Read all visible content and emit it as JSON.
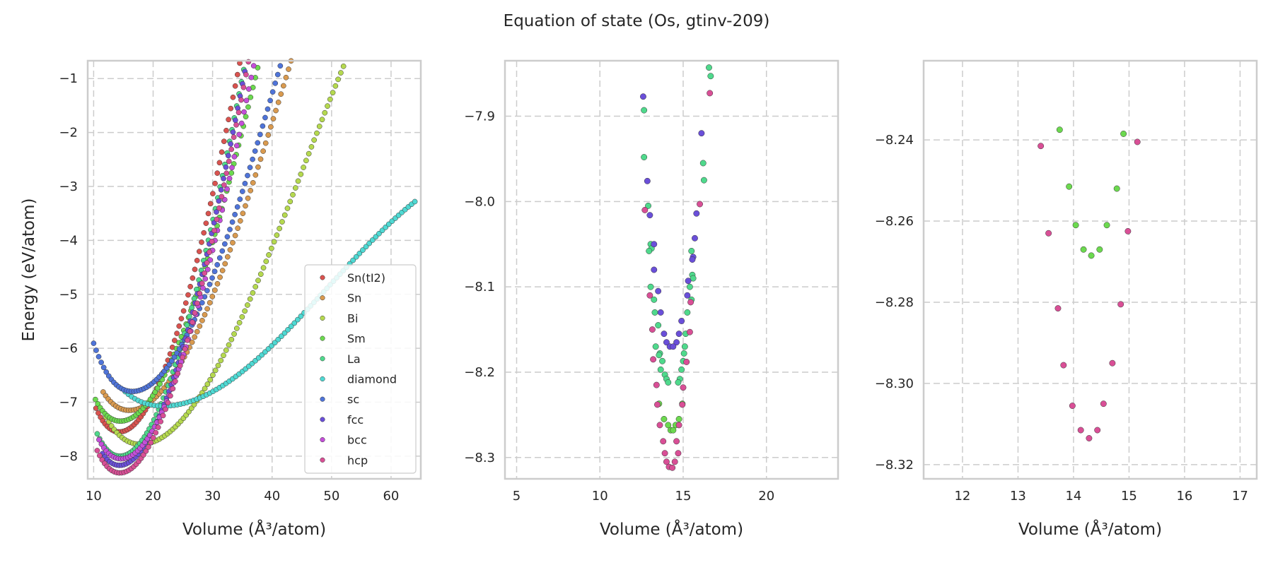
{
  "figure": {
    "title": "Equation of state (Os, gtinv-209)"
  },
  "chart_data": [
    {
      "type": "scatter",
      "xlabel": "Volume (Å³/atom)",
      "ylabel": "Energy (eV/atom)",
      "xlim": [
        9,
        65
      ],
      "ylim": [
        -8.42,
        -0.67
      ],
      "xticks": [
        10,
        20,
        30,
        40,
        50,
        60
      ],
      "yticks": [
        -8,
        -7,
        -6,
        -5,
        -4,
        -3,
        -2,
        -1
      ],
      "ytick_labels": [
        "−8",
        "−7",
        "−6",
        "−5",
        "−4",
        "−3",
        "−2",
        "−1"
      ],
      "grid": true,
      "legend": {
        "placement": "lower-right"
      },
      "series": [
        {
          "name": "Sn(tI2)",
          "color": "#d9534f",
          "v0": 14.3,
          "e0": -7.55,
          "k": 0.022,
          "vmin": 10.4,
          "vmax": 44.0,
          "n": 90
        },
        {
          "name": "Sn",
          "color": "#d99a4f",
          "v0": 16.0,
          "e0": -7.15,
          "k": 0.013,
          "vmin": 11.6,
          "vmax": 49.6,
          "n": 90
        },
        {
          "name": "Bi",
          "color": "#b5d94f",
          "v0": 17.9,
          "e0": -7.78,
          "k": 0.0102,
          "vmin": 12.1,
          "vmax": 52.0,
          "n": 90
        },
        {
          "name": "Sm",
          "color": "#6cd94f",
          "v0": 14.5,
          "e0": -7.35,
          "k": 0.017,
          "vmin": 10.3,
          "vmax": 42.0,
          "n": 80
        },
        {
          "name": "La",
          "color": "#4fd98c",
          "v0": 14.4,
          "e0": -8.0,
          "k": 0.022,
          "vmin": 10.6,
          "vmax": 42.0,
          "n": 80
        },
        {
          "name": "diamond",
          "color": "#4fd9d3",
          "v0": 21.7,
          "e0": -7.07,
          "k": 0.0043,
          "vmin": 15.3,
          "vmax": 64.0,
          "n": 90
        },
        {
          "name": "sc",
          "color": "#4f74d9",
          "v0": 16.5,
          "e0": -6.8,
          "k": 0.0139,
          "vmin": 10.0,
          "vmax": 43.5,
          "n": 80
        },
        {
          "name": "fcc",
          "color": "#6a4fd9",
          "v0": 14.35,
          "e0": -8.17,
          "k": 0.022,
          "vmin": 11.5,
          "vmax": 43.0,
          "n": 80
        },
        {
          "name": "bcc",
          "color": "#c44fd9",
          "v0": 14.6,
          "e0": -8.05,
          "k": 0.02,
          "vmin": 10.9,
          "vmax": 43.0,
          "n": 80
        },
        {
          "name": "hcp",
          "color": "#d94f96",
          "v0": 14.4,
          "e0": -8.31,
          "k": 0.022,
          "vmin": 10.6,
          "vmax": 43.0,
          "n": 80
        }
      ]
    },
    {
      "type": "scatter",
      "xlabel": "Volume (Å³/atom)",
      "xlim": [
        4.3,
        24.3
      ],
      "ylim": [
        -8.325,
        -7.835
      ],
      "xticks": [
        5,
        10,
        15,
        20
      ],
      "yticks": [
        -8.3,
        -8.2,
        -8.1,
        -8.0,
        -7.9
      ],
      "ytick_labels": [
        "−8.3",
        "−8.2",
        "−8.1",
        "−8.0",
        "−7.9"
      ],
      "grid": true,
      "series": [
        {
          "name": "La",
          "color": "#4fd98c",
          "points": [
            [
              16.55,
              -7.843
            ],
            [
              16.65,
              -7.853
            ],
            [
              12.65,
              -7.893
            ],
            [
              12.65,
              -7.948
            ],
            [
              16.2,
              -7.955
            ],
            [
              16.25,
              -7.975
            ],
            [
              12.9,
              -8.005
            ],
            [
              13.05,
              -8.05
            ],
            [
              13.1,
              -8.055
            ],
            [
              15.5,
              -8.058
            ],
            [
              12.95,
              -8.058
            ],
            [
              15.55,
              -8.086
            ],
            [
              15.6,
              -8.09
            ],
            [
              13.05,
              -8.1
            ],
            [
              15.4,
              -8.1
            ],
            [
              13.25,
              -8.115
            ],
            [
              15.5,
              -8.115
            ],
            [
              13.3,
              -8.13
            ],
            [
              15.25,
              -8.13
            ],
            [
              13.5,
              -8.145
            ],
            [
              15.15,
              -8.155
            ],
            [
              13.35,
              -8.17
            ],
            [
              15.1,
              -8.17
            ],
            [
              13.6,
              -8.178
            ],
            [
              15.05,
              -8.178
            ],
            [
              13.55,
              -8.18
            ],
            [
              15.0,
              -8.187
            ],
            [
              13.75,
              -8.187
            ],
            [
              13.65,
              -8.197
            ],
            [
              14.9,
              -8.197
            ],
            [
              13.9,
              -8.203
            ],
            [
              14.0,
              -8.208
            ],
            [
              14.8,
              -8.208
            ],
            [
              14.1,
              -8.212
            ],
            [
              14.7,
              -8.212
            ]
          ]
        },
        {
          "name": "Sm",
          "color": "#6cd94f",
          "points": [
            [
              13.55,
              -8.237
            ],
            [
              14.95,
              -8.237
            ],
            [
              13.85,
              -8.255
            ],
            [
              14.75,
              -8.255
            ],
            [
              14.1,
              -8.262
            ],
            [
              14.55,
              -8.262
            ],
            [
              14.25,
              -8.268
            ],
            [
              14.4,
              -8.268
            ]
          ]
        },
        {
          "name": "fcc",
          "color": "#6a4fd9",
          "points": [
            [
              12.6,
              -7.877
            ],
            [
              16.1,
              -7.92
            ],
            [
              12.85,
              -7.976
            ],
            [
              15.8,
              -8.014
            ],
            [
              13.0,
              -8.016
            ],
            [
              15.7,
              -8.043
            ],
            [
              13.25,
              -8.05
            ],
            [
              15.6,
              -8.065
            ],
            [
              15.55,
              -8.068
            ],
            [
              13.25,
              -8.08
            ],
            [
              15.3,
              -8.093
            ],
            [
              13.5,
              -8.105
            ],
            [
              15.25,
              -8.11
            ],
            [
              13.65,
              -8.13
            ],
            [
              14.9,
              -8.14
            ],
            [
              13.85,
              -8.155
            ],
            [
              14.75,
              -8.155
            ],
            [
              14.0,
              -8.165
            ],
            [
              14.6,
              -8.165
            ],
            [
              14.2,
              -8.17
            ],
            [
              14.4,
              -8.17
            ]
          ]
        },
        {
          "name": "hcp",
          "color": "#d94f96",
          "points": [
            [
              16.6,
              -7.873
            ],
            [
              12.7,
              -8.01
            ],
            [
              16.0,
              -8.003
            ],
            [
              13.0,
              -8.11
            ],
            [
              15.45,
              -8.118
            ],
            [
              13.15,
              -8.15
            ],
            [
              15.4,
              -8.153
            ],
            [
              13.2,
              -8.185
            ],
            [
              15.2,
              -8.188
            ],
            [
              13.4,
              -8.215
            ],
            [
              15.0,
              -8.218
            ],
            [
              13.45,
              -8.238
            ],
            [
              14.95,
              -8.238
            ],
            [
              13.6,
              -8.262
            ],
            [
              14.75,
              -8.262
            ],
            [
              13.8,
              -8.281
            ],
            [
              14.6,
              -8.281
            ],
            [
              13.9,
              -8.295
            ],
            [
              14.7,
              -8.295
            ],
            [
              14.0,
              -8.305
            ],
            [
              14.5,
              -8.305
            ],
            [
              14.15,
              -8.311
            ],
            [
              14.35,
              -8.312
            ]
          ]
        }
      ]
    },
    {
      "type": "scatter",
      "xlabel": "Volume (Å³/atom)",
      "xlim": [
        11.3,
        17.3
      ],
      "ylim": [
        -8.3235,
        -8.2205
      ],
      "xticks": [
        12,
        13,
        14,
        15,
        16,
        17
      ],
      "yticks": [
        -8.32,
        -8.3,
        -8.28,
        -8.26,
        -8.24
      ],
      "ytick_labels": [
        "−8.32",
        "−8.30",
        "−8.28",
        "−8.26",
        "−8.24"
      ],
      "grid": true,
      "series": [
        {
          "name": "Sm",
          "color": "#6cd94f",
          "points": [
            [
              13.75,
              -8.2375
            ],
            [
              14.9,
              -8.2385
            ],
            [
              13.92,
              -8.2515
            ],
            [
              14.78,
              -8.252
            ],
            [
              14.04,
              -8.261
            ],
            [
              14.6,
              -8.261
            ],
            [
              14.18,
              -8.267
            ],
            [
              14.47,
              -8.267
            ],
            [
              14.32,
              -8.2685
            ]
          ]
        },
        {
          "name": "hcp",
          "color": "#d94f96",
          "points": [
            [
              13.41,
              -8.2415
            ],
            [
              15.15,
              -8.2405
            ],
            [
              13.55,
              -8.263
            ],
            [
              14.98,
              -8.2625
            ],
            [
              13.72,
              -8.2815
            ],
            [
              14.85,
              -8.2805
            ],
            [
              13.82,
              -8.2955
            ],
            [
              14.7,
              -8.295
            ],
            [
              13.98,
              -8.3055
            ],
            [
              14.54,
              -8.305
            ],
            [
              14.13,
              -8.3115
            ],
            [
              14.43,
              -8.3115
            ],
            [
              14.28,
              -8.3135
            ]
          ]
        }
      ]
    }
  ]
}
